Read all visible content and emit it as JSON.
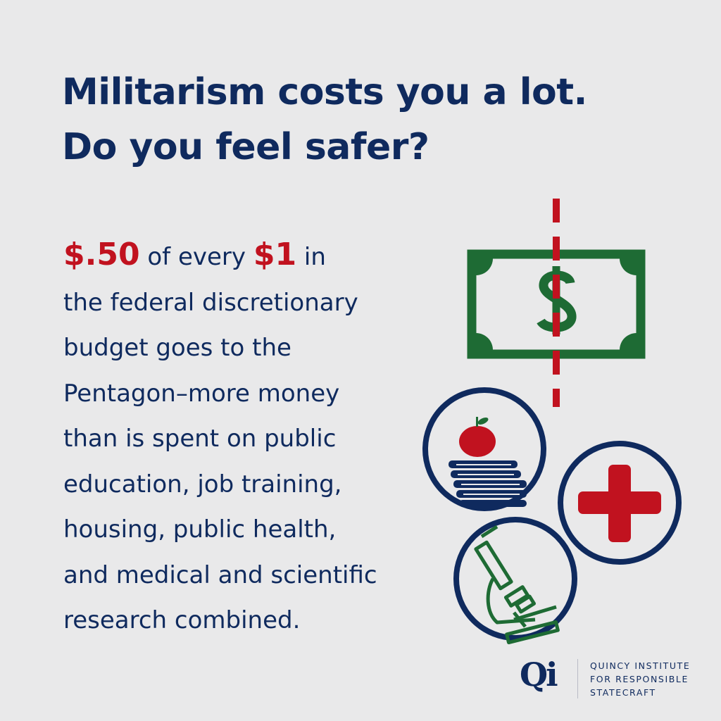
{
  "headline": {
    "line1": "Militarism costs you a lot.",
    "line2": "Do you feel safer?"
  },
  "body": {
    "amount_part": "$.50",
    "of_every": " of every ",
    "amount_whole": "$1",
    "line1_end": " in",
    "lines": [
      "the federal discretionary",
      "budget goes to the",
      "Pentagon–more money",
      "than is spent on public",
      "education, job training,",
      "housing, public health,",
      "and medical and scientific",
      "research combined."
    ]
  },
  "icons": {
    "bill": "dollar-bill-icon",
    "education": "apple-on-books-icon",
    "health": "red-cross-icon",
    "science": "microscope-icon"
  },
  "colors": {
    "background": "#e9e9ea",
    "navy": "#0f2a5e",
    "red": "#c1121f",
    "green": "#1e6b34"
  },
  "logo": {
    "mark": "Qi",
    "line1": "QUINCY INSTITUTE",
    "line2": "FOR RESPONSIBLE",
    "line3": "STATECRAFT"
  }
}
